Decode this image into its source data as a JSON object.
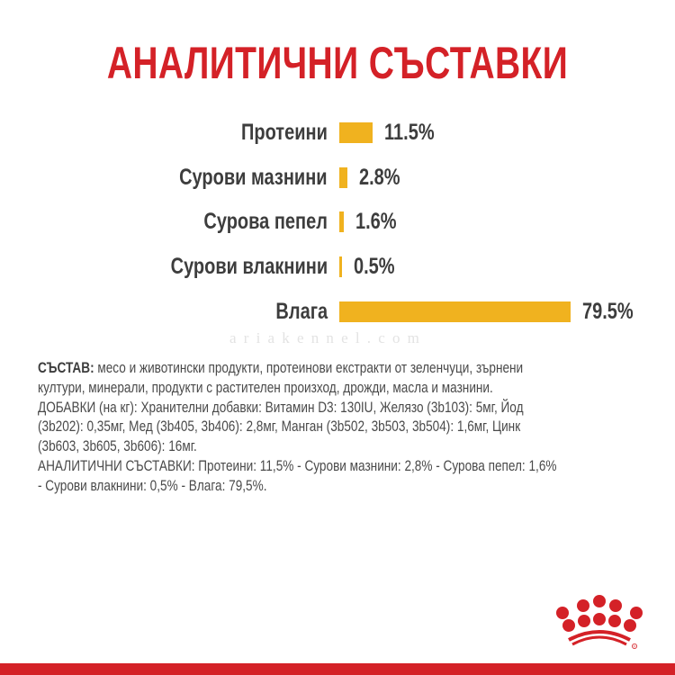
{
  "colors": {
    "title": "#d42127",
    "bar": "#f0b21f",
    "text": "#3d3d3d",
    "body_text": "#4a4a4a",
    "footer": "#d42127",
    "logo": "#d42127"
  },
  "title": "АНАЛИТИЧНИ СЪСТАВКИ",
  "chart_data": {
    "type": "bar",
    "orientation": "horizontal",
    "title": "АНАЛИТИЧНИ СЪСТАВКИ",
    "categories": [
      "Протеини",
      "Сурови мазнини",
      "Сурова пепел",
      "Сурови влакнини",
      "Влага"
    ],
    "values": [
      11.5,
      2.8,
      1.6,
      0.5,
      79.5
    ],
    "value_labels": [
      "11.5%",
      "2.8%",
      "1.6%",
      "0.5%",
      "79.5%"
    ],
    "unit": "%",
    "xlabel": "",
    "ylabel": "",
    "grid": false,
    "legend": null
  },
  "watermark": "ariakennel.com",
  "composition": {
    "heading": "СЪСТАВ:",
    "lines": [
      " месо и животински продукти, протеинови екстракти от зеленчуци, зърнени",
      "култури, минерали, продукти с растителен произход, дрожди, масла и мазнини.",
      "ДОБАВКИ (на кг): Хранителни добавки: Витамин D3: 130IU, Желязо (3b103): 5мг, Йод",
      "(3b202): 0,35мг, Мед (3b405, 3b406): 2,8мг, Манган (3b502, 3b503, 3b504): 1,6мг, Цинк",
      "(3b603, 3b605, 3b606): 16мг.",
      "АНАЛИТИЧНИ СЪСТАВКИ: Протеини: 11,5% - Сурови мазнини: 2,8% - Сурова пепел: 1,6%",
      "- Сурови влакнини: 0,5% - Влага: 79,5%."
    ]
  },
  "logo": {
    "name": "crown-logo",
    "registered_mark": "®"
  }
}
